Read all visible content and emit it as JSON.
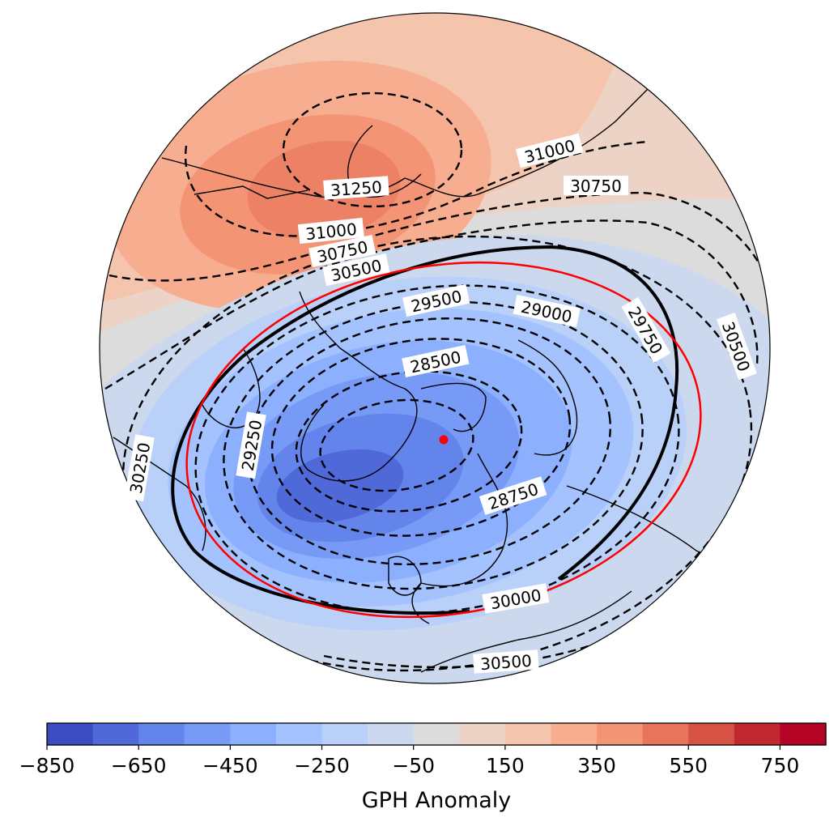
{
  "map": {
    "projection": "orthographic polar view",
    "center_marker_color": "#ff0000",
    "contour_levels": [
      {
        "text": "31250"
      },
      {
        "text": "31000"
      },
      {
        "text": "31000"
      },
      {
        "text": "30750"
      },
      {
        "text": "30750"
      },
      {
        "text": "30500"
      },
      {
        "text": "29500"
      },
      {
        "text": "29000"
      },
      {
        "text": "29750"
      },
      {
        "text": "30500"
      },
      {
        "text": "28500"
      },
      {
        "text": "29250"
      },
      {
        "text": "30250"
      },
      {
        "text": "28750"
      },
      {
        "text": "30000"
      },
      {
        "text": "30500"
      }
    ],
    "highlight_contour_color": "#000000",
    "reference_ellipse_color": "#ff0000"
  },
  "colorbar": {
    "label": "GPH Anomaly",
    "tick_labels": [
      "−850",
      "−650",
      "−450",
      "−250",
      "−50",
      "150",
      "350",
      "550",
      "750"
    ],
    "colors": [
      "#3b4cc0",
      "#4f69d9",
      "#6384eb",
      "#779af7",
      "#8db0fe",
      "#a3c2fe",
      "#b9d0f9",
      "#cbd8ee",
      "#dddcdc",
      "#ecd3c5",
      "#f5c4ac",
      "#f7ad90",
      "#f39475",
      "#e7745b",
      "#d65244",
      "#c0282f",
      "#b40426"
    ]
  }
}
